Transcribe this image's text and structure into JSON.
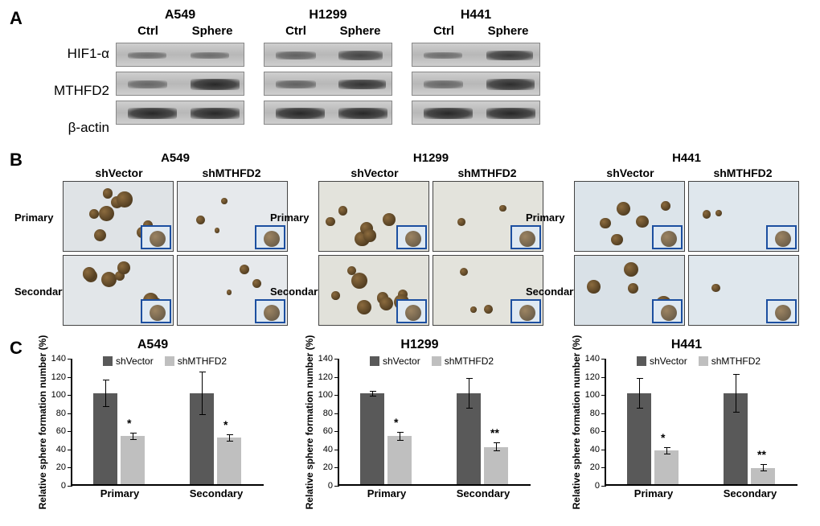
{
  "colors": {
    "shVector": "#595959",
    "shMTHFD2": "#bfbfbf",
    "inset_border": "#1c4fa0",
    "blot_bg": "#c4c4c4",
    "axis": "#000000"
  },
  "panelA": {
    "label": "A",
    "row_labels": [
      "HIF1-α",
      "MTHFD2",
      "β-actin"
    ],
    "cell_lines": [
      "A549",
      "H1299",
      "H441"
    ],
    "conditions": [
      "Ctrl",
      "Sphere"
    ],
    "band_intensity": {
      "A549": {
        "HIF1a": [
          0.35,
          0.35
        ],
        "MTHFD2": [
          0.4,
          0.95
        ],
        "actin": [
          0.95,
          0.95
        ]
      },
      "H1299": {
        "HIF1a": [
          0.45,
          0.7
        ],
        "MTHFD2": [
          0.45,
          0.85
        ],
        "actin": [
          0.95,
          0.95
        ]
      },
      "H441": {
        "HIF1a": [
          0.35,
          0.8
        ],
        "MTHFD2": [
          0.4,
          0.9
        ],
        "actin": [
          0.95,
          0.95
        ]
      }
    }
  },
  "panelB": {
    "label": "B",
    "cell_lines": [
      "A549",
      "H1299",
      "H441"
    ],
    "col_labels": [
      "shVector",
      "shMTHFD2"
    ],
    "row_labels": [
      "Primary",
      "Secondary"
    ],
    "sphere_counts": {
      "A549": [
        [
          8,
          3
        ],
        [
          7,
          3
        ]
      ],
      "H1299": [
        [
          6,
          2
        ],
        [
          9,
          3
        ]
      ],
      "H441": [
        [
          5,
          2
        ],
        [
          4,
          1
        ]
      ]
    },
    "micro_bg": {
      "A549": [
        "#dfe3e6",
        "#e6e9ec",
        "#e2e6e9",
        "#e6e9ec"
      ],
      "H1299": [
        "#e3e3dc",
        "#e3e3dc",
        "#e1e1da",
        "#e3e3dc"
      ],
      "H441": [
        "#dce4ea",
        "#dfe7ed",
        "#d9e1e7",
        "#dfe7ed"
      ]
    }
  },
  "panelC": {
    "label": "C",
    "charts": [
      {
        "title": "A549",
        "ylabel": "Relative sphere formation number (%)",
        "ymax": 140,
        "ytick": 20,
        "categories": [
          "Primary",
          "Secondary"
        ],
        "series": [
          {
            "name": "shVector",
            "values": [
              100,
              100
            ],
            "err": [
              15,
              24
            ]
          },
          {
            "name": "shMTHFD2",
            "values": [
              53,
              51
            ],
            "err": [
              4,
              4
            ],
            "sig": [
              "*",
              "*"
            ]
          }
        ]
      },
      {
        "title": "H1299",
        "ylabel": "Relative sphere formation number (%)",
        "ymax": 140,
        "ytick": 20,
        "categories": [
          "Primary",
          "Secondary"
        ],
        "series": [
          {
            "name": "shVector",
            "values": [
              100,
              100
            ],
            "err": [
              3,
              17
            ]
          },
          {
            "name": "shMTHFD2",
            "values": [
              53,
              41
            ],
            "err": [
              5,
              5
            ],
            "sig": [
              "*",
              "**"
            ]
          }
        ]
      },
      {
        "title": "H441",
        "ylabel": "Relative sphere formation number (%)",
        "ymax": 140,
        "ytick": 20,
        "categories": [
          "Primary",
          "Secondary"
        ],
        "series": [
          {
            "name": "shVector",
            "values": [
              100,
              100
            ],
            "err": [
              17,
              21
            ]
          },
          {
            "name": "shMTHFD2",
            "values": [
              37,
              18
            ],
            "err": [
              4,
              4
            ],
            "sig": [
              "*",
              "**"
            ]
          }
        ]
      }
    ],
    "legend": [
      "shVector",
      "shMTHFD2"
    ]
  }
}
